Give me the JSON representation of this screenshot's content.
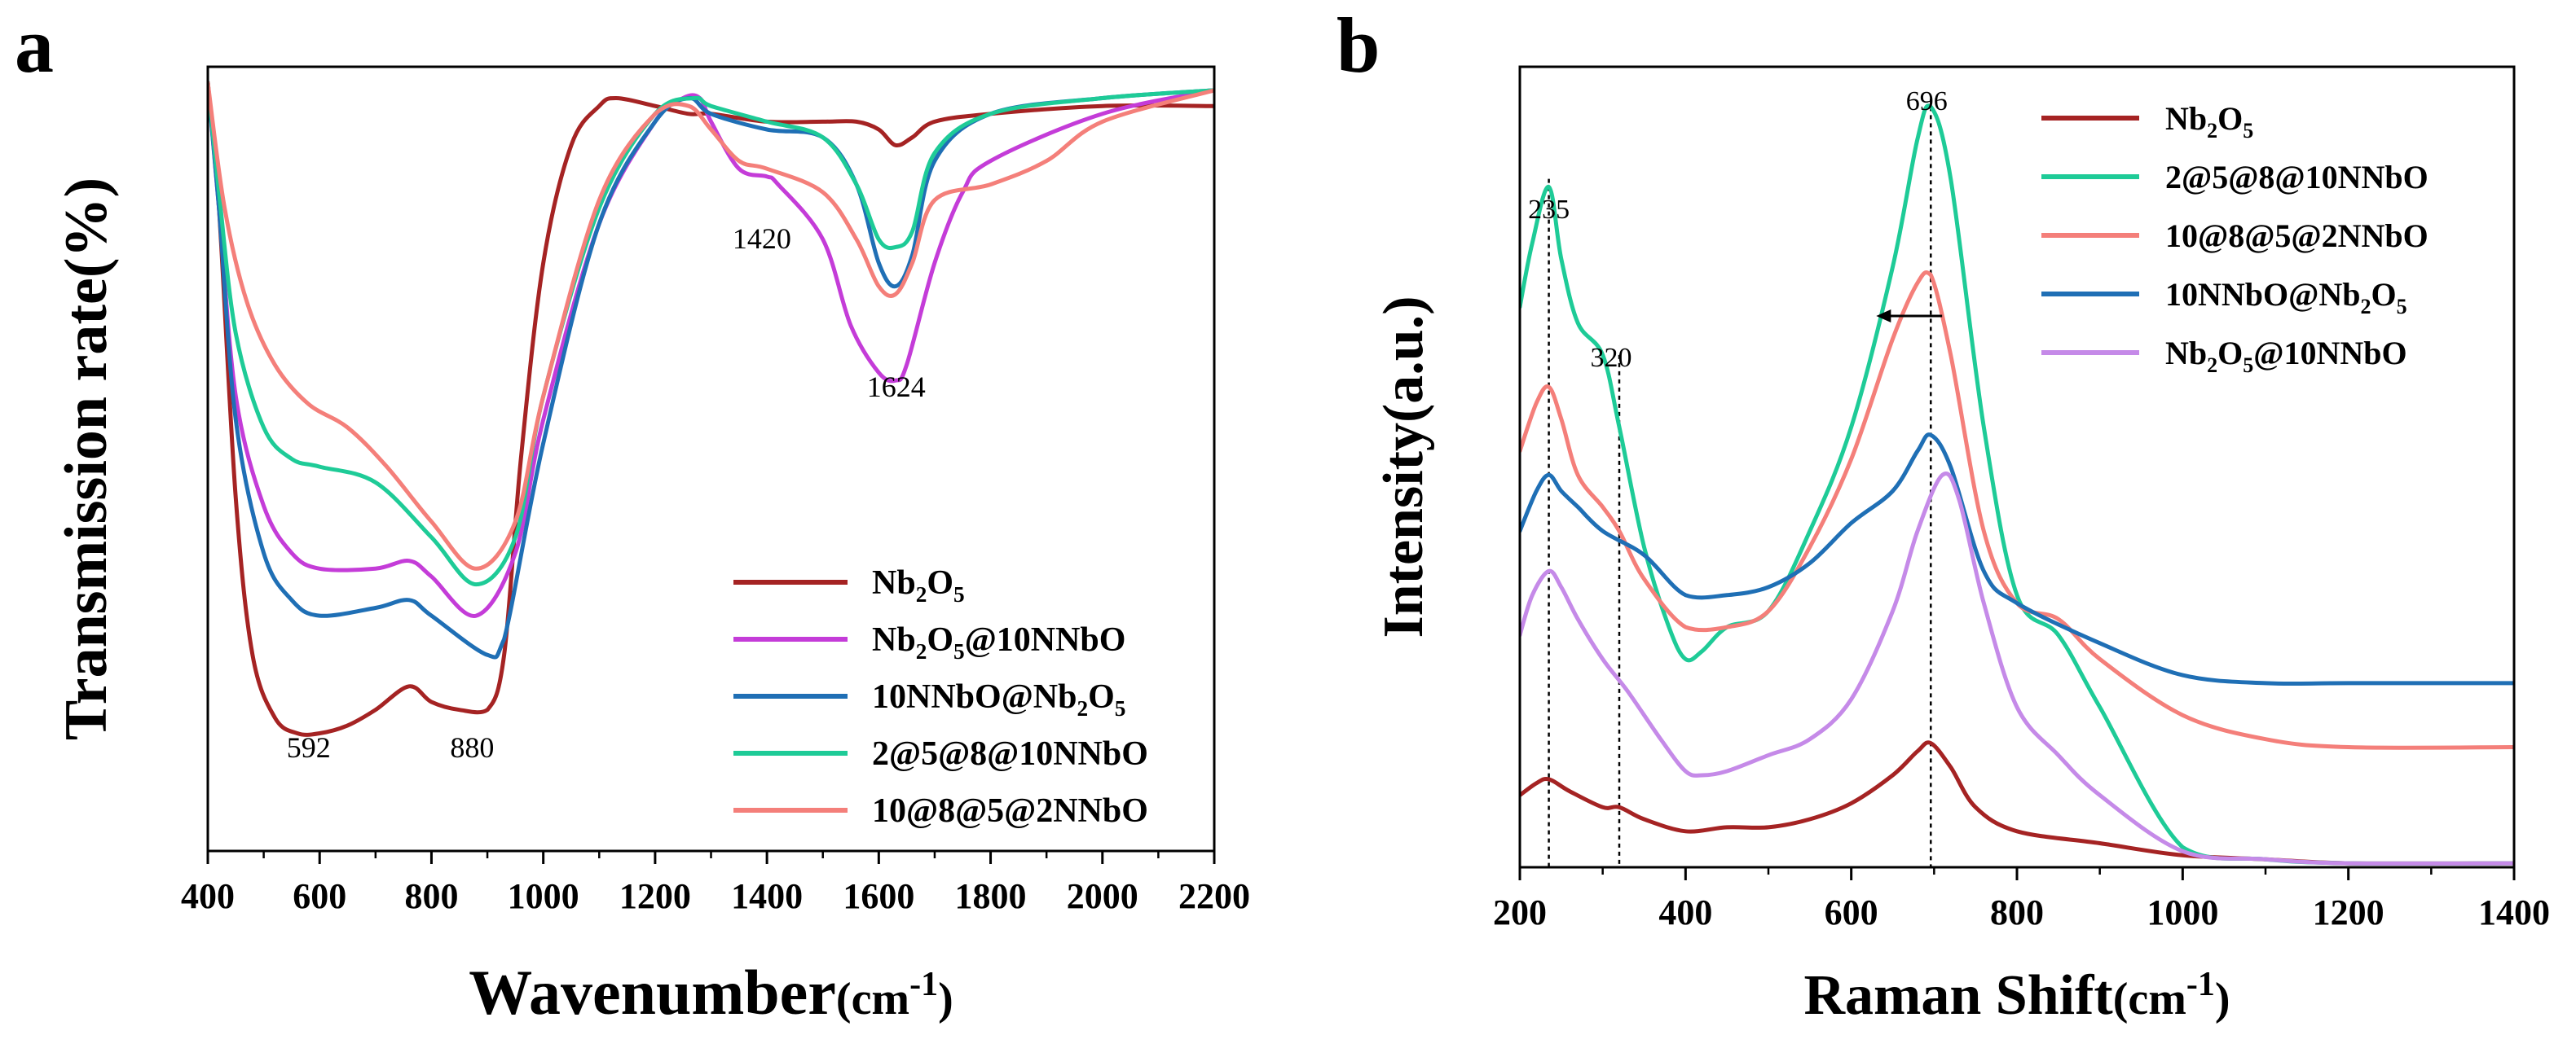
{
  "figure": {
    "panel_a_label": "a",
    "panel_b_label": "b"
  },
  "chart_data": [
    {
      "type": "line",
      "panel": "a",
      "title": "",
      "xlabel": "Wavenumber",
      "xlabel_unit": "(cm",
      "xlabel_unit_sup": "-1",
      "xlabel_unit_end": ")",
      "ylabel": "Transmission rate(%)",
      "xlim": [
        400,
        2200
      ],
      "ylim": [
        0,
        100
      ],
      "xticks": [
        400,
        600,
        800,
        1000,
        1200,
        1400,
        1600,
        1800,
        2000,
        2200
      ],
      "yticks_shown": false,
      "legend_position": "bottom-right",
      "annotations": [
        {
          "text": "592",
          "x": 592,
          "y": 8
        },
        {
          "text": "880",
          "x": 880,
          "y": 9
        },
        {
          "text": "1420",
          "x": 1420,
          "y": 80
        },
        {
          "text": "1624",
          "x": 1624,
          "y": 60
        }
      ],
      "series": [
        {
          "name": "Nb2O5",
          "legend_main": "Nb",
          "legend_sub1": "2",
          "legend_mid": "O",
          "legend_sub2": "5",
          "legend_tail": "",
          "color": "#A52323",
          "x": [
            400,
            420,
            450,
            480,
            520,
            560,
            600,
            650,
            700,
            760,
            800,
            850,
            900,
            930,
            960,
            1000,
            1050,
            1100,
            1130,
            1200,
            1260,
            1300,
            1400,
            1500,
            1560,
            1600,
            1630,
            1660,
            1700,
            1800,
            2000,
            2200
          ],
          "y": [
            98,
            82,
            45,
            25,
            17,
            15,
            15,
            16,
            18,
            21,
            19,
            18,
            18,
            25,
            50,
            75,
            90,
            95,
            96,
            95,
            94,
            94,
            93,
            93,
            93,
            92,
            90,
            91,
            93,
            94,
            95,
            95
          ]
        },
        {
          "name": "Nb2O5@10NNbO",
          "legend_main": "Nb",
          "legend_sub1": "2",
          "legend_mid": "O",
          "legend_sub2": "5",
          "legend_tail": "@10NNbO",
          "color": "#C43CD8",
          "x": [
            400,
            420,
            450,
            500,
            550,
            600,
            700,
            760,
            800,
            880,
            950,
            1000,
            1100,
            1200,
            1250,
            1280,
            1300,
            1350,
            1400,
            1420,
            1500,
            1550,
            1600,
            1630,
            1650,
            1700,
            1750,
            1800,
            2000,
            2200
          ],
          "y": [
            98,
            82,
            58,
            44,
            38,
            36,
            36,
            37,
            35,
            30,
            38,
            55,
            80,
            93,
            96,
            96,
            93,
            87,
            86,
            85,
            78,
            67,
            61,
            60,
            62,
            75,
            84,
            88,
            94,
            97
          ]
        },
        {
          "name": "10NNbO@Nb2O5",
          "legend_main": "10NNbO@Nb",
          "legend_sub1": "2",
          "legend_mid": "O",
          "legend_sub2": "5",
          "legend_tail": "",
          "color": "#1F6FB5",
          "x": [
            400,
            420,
            450,
            500,
            550,
            600,
            700,
            760,
            800,
            900,
            930,
            1000,
            1100,
            1200,
            1260,
            1300,
            1400,
            1500,
            1560,
            1600,
            1630,
            1660,
            1700,
            1800,
            2000,
            2200
          ],
          "y": [
            98,
            82,
            55,
            38,
            32,
            30,
            31,
            32,
            30,
            25,
            27,
            52,
            80,
            93,
            96,
            94,
            92,
            91,
            85,
            75,
            72,
            76,
            88,
            94,
            96,
            97
          ]
        },
        {
          "name": "2@5@8@10NNbO",
          "legend_main": "2@5@8@10NNbO",
          "legend_sub1": "",
          "legend_mid": "",
          "legend_sub2": "",
          "legend_tail": "",
          "color": "#1ECB97",
          "x": [
            400,
            420,
            450,
            500,
            550,
            600,
            700,
            800,
            880,
            950,
            1000,
            1100,
            1200,
            1270,
            1300,
            1400,
            1500,
            1560,
            1600,
            1630,
            1660,
            1700,
            1800,
            2000,
            2200
          ],
          "y": [
            98,
            84,
            66,
            54,
            50,
            49,
            47,
            40,
            34,
            40,
            58,
            82,
            94,
            96,
            95,
            93,
            91,
            85,
            78,
            77,
            79,
            89,
            94,
            96,
            97
          ]
        },
        {
          "name": "10@8@5@2NNbO",
          "legend_main": "10@8@5@2NNbO",
          "legend_sub1": "",
          "legend_mid": "",
          "legend_sub2": "",
          "legend_tail": "",
          "color": "#F47F7A",
          "x": [
            400,
            430,
            470,
            520,
            580,
            650,
            720,
            800,
            880,
            950,
            1000,
            1100,
            1200,
            1260,
            1300,
            1350,
            1400,
            1500,
            1560,
            1600,
            1630,
            1660,
            1700,
            1800,
            1900,
            2000,
            2200
          ],
          "y": [
            98,
            82,
            70,
            62,
            57,
            54,
            49,
            42,
            36,
            42,
            58,
            83,
            94,
            95,
            92,
            88,
            87,
            84,
            78,
            72,
            71,
            75,
            83,
            85,
            88,
            93,
            97
          ]
        }
      ]
    },
    {
      "type": "line",
      "panel": "b",
      "title": "",
      "xlabel": "Raman Shift",
      "xlabel_unit": "(cm",
      "xlabel_unit_sup": "-1",
      "xlabel_unit_end": ")",
      "ylabel": "Intensity(a.u.)",
      "xlim": [
        200,
        1400
      ],
      "ylim": [
        0,
        100
      ],
      "xticks": [
        200,
        400,
        600,
        800,
        1000,
        1200,
        1400
      ],
      "yticks_shown": false,
      "legend_position": "top-right",
      "annotations": [
        {
          "text": "696",
          "x": 696,
          "y": 98
        },
        {
          "text": "235",
          "x": 235,
          "y": 84
        },
        {
          "text": "320",
          "x": 320,
          "y": 67
        }
      ],
      "reference_lines_x": [
        235,
        320,
        696
      ],
      "arrow": {
        "from_x": 690,
        "to_x": 640,
        "y": 72,
        "direction": "left"
      },
      "series": [
        {
          "name": "Nb2O5",
          "legend_main": "Nb",
          "legend_sub1": "2",
          "legend_mid": "O",
          "legend_sub2": "5",
          "legend_tail": "",
          "color": "#A52323",
          "x": [
            200,
            220,
            235,
            260,
            300,
            320,
            350,
            400,
            450,
            500,
            550,
            600,
            650,
            680,
            696,
            720,
            750,
            800,
            900,
            1000,
            1100,
            1200,
            1400
          ],
          "y": [
            9,
            10.5,
            11,
            9.5,
            7.5,
            7.5,
            6,
            4.5,
            5,
            5,
            6,
            8,
            11.5,
            14.5,
            15.5,
            12.5,
            7.5,
            4.5,
            3,
            1.5,
            1,
            0.5,
            0.5
          ]
        },
        {
          "name": "2@5@8@10NNbO",
          "legend_main": "2@5@8@10NNbO",
          "legend_sub1": "",
          "legend_mid": "",
          "legend_sub2": "",
          "legend_tail": "",
          "color": "#1ECB97",
          "x": [
            200,
            215,
            235,
            250,
            270,
            300,
            320,
            350,
            380,
            400,
            420,
            450,
            500,
            550,
            600,
            650,
            680,
            696,
            720,
            760,
            800,
            850,
            900,
            1000,
            1100,
            1200,
            1400
          ],
          "y": [
            70,
            78,
            85,
            76,
            68,
            64,
            55,
            40,
            30,
            26,
            27,
            30,
            32,
            42,
            55,
            75,
            91,
            95,
            86,
            55,
            34,
            29,
            20,
            2.5,
            1,
            0.5,
            0.5
          ]
        },
        {
          "name": "10@8@5@2NNbO",
          "legend_main": "10@8@5@2NNbO",
          "legend_sub1": "",
          "legend_mid": "",
          "legend_sub2": "",
          "legend_tail": "",
          "color": "#F47F7A",
          "x": [
            200,
            220,
            235,
            250,
            270,
            300,
            320,
            350,
            400,
            450,
            500,
            550,
            600,
            650,
            680,
            696,
            720,
            760,
            800,
            850,
            900,
            1000,
            1100,
            1200,
            1400
          ],
          "y": [
            52,
            58,
            60,
            56,
            49,
            45,
            42,
            36,
            30,
            30,
            32,
            40,
            51,
            66,
            73,
            74,
            64,
            42,
            33,
            31,
            26,
            19,
            16,
            15,
            15
          ]
        },
        {
          "name": "10NNbO@Nb2O5",
          "legend_main": "10NNbO@Nb",
          "legend_sub1": "2",
          "legend_mid": "O",
          "legend_sub2": "5",
          "legend_tail": "",
          "color": "#1F6FB5",
          "x": [
            200,
            220,
            235,
            250,
            270,
            300,
            350,
            400,
            450,
            500,
            550,
            600,
            650,
            680,
            696,
            720,
            760,
            800,
            900,
            1000,
            1100,
            1200,
            1400
          ],
          "y": [
            42,
            47,
            49,
            47,
            45,
            42,
            39,
            34,
            34,
            35,
            38,
            43,
            47,
            52,
            54,
            50,
            37,
            33,
            28,
            24,
            23,
            23,
            23
          ]
        },
        {
          "name": "Nb2O5@10NNbO",
          "legend_main": "Nb",
          "legend_sub1": "2",
          "legend_mid": "O",
          "legend_sub2": "5",
          "legend_tail": "@10NNbO",
          "color": "#C58AE8",
          "x": [
            200,
            215,
            235,
            250,
            270,
            300,
            330,
            370,
            400,
            420,
            450,
            500,
            550,
            600,
            650,
            680,
            710,
            730,
            760,
            800,
            850,
            900,
            1000,
            1100,
            1200,
            1400
          ],
          "y": [
            29,
            34,
            37,
            35,
            31,
            26,
            22,
            16,
            12,
            11.5,
            12,
            14,
            16,
            21,
            32,
            42,
            49,
            46,
            33,
            20,
            14,
            9,
            2,
            1,
            0.5,
            0.5
          ]
        }
      ]
    }
  ]
}
